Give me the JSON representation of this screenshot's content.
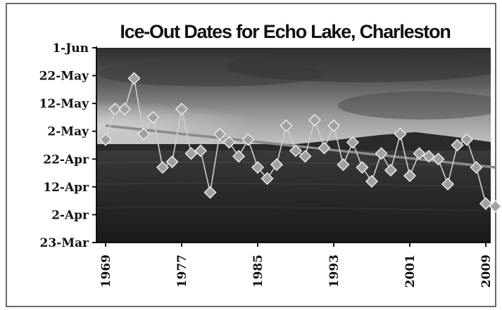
{
  "chart_data": {
    "type": "scatter",
    "title": "Ice-Out Dates for Echo Lake, Charleston",
    "xlabel": "",
    "ylabel": "",
    "x_tick_labels": [
      "1969",
      "1977",
      "1985",
      "1993",
      "2001",
      "2009"
    ],
    "y_tick_labels": [
      "1-Jun",
      "22-May",
      "12-May",
      "2-May",
      "22-Apr",
      "12-Apr",
      "2-Apr",
      "23-Mar"
    ],
    "y_tick_dates": [
      "2000-06-01",
      "2000-05-22",
      "2000-05-12",
      "2000-05-02",
      "2000-04-22",
      "2000-04-12",
      "2000-04-02",
      "2000-03-23"
    ],
    "xlim": [
      1969,
      2009
    ],
    "ylim": [
      "23-Mar",
      "1-Jun"
    ],
    "grid": false,
    "legend": "none",
    "background": "photo of a lake under a cloudy sky",
    "series": [
      {
        "marker": "diamond",
        "color": "#a0a0a0",
        "connected": true,
        "x": [
          1969,
          1970,
          1971,
          1972,
          1973,
          1974,
          1975,
          1976,
          1977,
          1978,
          1979,
          1980,
          1981,
          1982,
          1983,
          1984,
          1985,
          1986,
          1987,
          1988,
          1989,
          1990,
          1991,
          1992,
          1993,
          1994,
          1995,
          1996,
          1997,
          1998,
          1999,
          2000,
          2001,
          2002,
          2003,
          2004,
          2005,
          2006,
          2007,
          2008,
          2009,
          2010
        ],
        "y": [
          "29-Apr",
          "10-May",
          "10-May",
          "21-May",
          "1-May",
          "7-May",
          "19-Apr",
          "21-Apr",
          "10-May",
          "24-Apr",
          "25-Apr",
          "10-Apr",
          "1-May",
          "28-Apr",
          "23-Apr",
          "29-Apr",
          "19-Apr",
          "15-Apr",
          "20-Apr",
          "4-May",
          "25-Apr",
          "23-Apr",
          "6-May",
          "26-Apr",
          "4-May",
          "20-Apr",
          "28-Apr",
          "19-Apr",
          "14-Apr",
          "24-Apr",
          "18-Apr",
          "1-May",
          "16-Apr",
          "24-Apr",
          "23-Apr",
          "22-Apr",
          "13-Apr",
          "27-Apr",
          "29-Apr",
          "19-Apr",
          "6-Apr",
          "5-Apr"
        ]
      },
      {
        "type": "line",
        "role": "trendline",
        "color": "#8a8a8a",
        "x": [
          1969,
          2010
        ],
        "y": [
          "4-May",
          "19-Apr"
        ]
      }
    ]
  }
}
